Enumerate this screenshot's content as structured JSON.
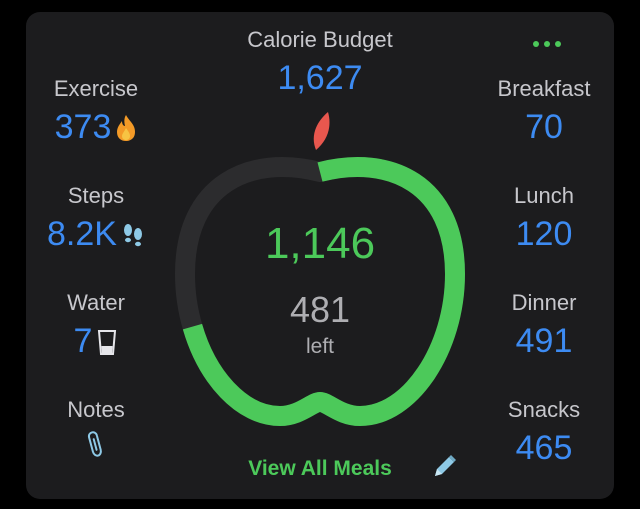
{
  "widget": {
    "title": "Calorie Budget",
    "budget": "1,627",
    "consumed": "1,146",
    "remaining": "481",
    "remaining_label": "left",
    "progress_fraction": 0.704,
    "view_all_label": "View All Meals"
  },
  "left_stats": [
    {
      "label": "Exercise",
      "value": "373",
      "icon": "flame-icon"
    },
    {
      "label": "Steps",
      "value": "8.2K",
      "icon": "footprints-icon"
    },
    {
      "label": "Water",
      "value": "7",
      "icon": "glass-icon"
    },
    {
      "label": "Notes",
      "value": "",
      "icon": "paperclip-icon"
    }
  ],
  "meals": [
    {
      "label": "Breakfast",
      "value": "70"
    },
    {
      "label": "Lunch",
      "value": "120"
    },
    {
      "label": "Dinner",
      "value": "491"
    },
    {
      "label": "Snacks",
      "value": "465"
    }
  ],
  "colors": {
    "background": "#000000",
    "card": "#1c1c1e",
    "accent_blue": "#3d8bf2",
    "accent_green": "#4cc95a",
    "track": "#2c2c2e",
    "leaf": "#e8574e"
  }
}
